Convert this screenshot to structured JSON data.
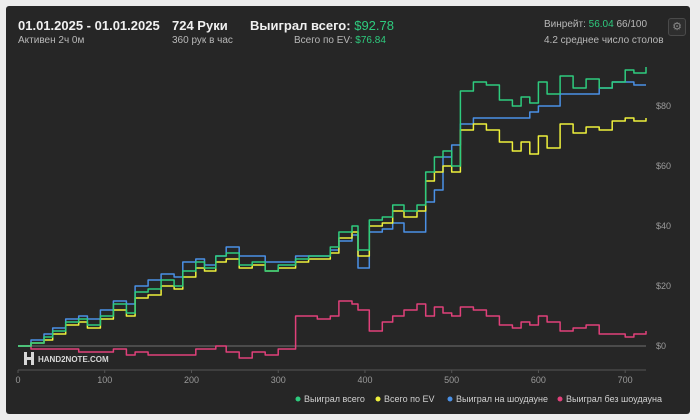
{
  "header": {
    "date_range": "01.01.2025 - 01.01.2025",
    "active_time": "Активен 2ч 0м",
    "hands": "724 Руки",
    "hands_per_hour": "360 рук в час",
    "won_total_label": "Выиграл всего:",
    "won_total_value": "$92.78",
    "ev_label": "Всего по EV:",
    "ev_value": "$76.84",
    "winrate_label": "Винрейт:",
    "winrate_value": "56.04",
    "winrate_suffix": "66/100",
    "avg_tables": "4.2 среднее число столов"
  },
  "settings_icon": "gear-icon",
  "logo": {
    "text": "HAND2NOTE.COM"
  },
  "colors": {
    "won_total": "#2ecb7e",
    "ev": "#eef03c",
    "showdown": "#4a90e6",
    "non_showdown": "#e0407a",
    "background": "#262626"
  },
  "chart_data": {
    "type": "line",
    "xlim": [
      0,
      724
    ],
    "ylim": [
      -8,
      96
    ],
    "x_ticks": [
      "0",
      "100",
      "200",
      "300",
      "400",
      "500",
      "600",
      "700"
    ],
    "y_ticks": [
      "$0",
      "$20",
      "$40",
      "$60",
      "$80"
    ],
    "x_tick_values": [
      0,
      100,
      200,
      300,
      400,
      500,
      600,
      700
    ],
    "y_tick_values": [
      0,
      20,
      40,
      60,
      80
    ],
    "grid": false,
    "legend_position": "bottom-right",
    "series": [
      {
        "name": "Выиграл всего",
        "color": "#2ecb7e",
        "x": [
          0,
          15,
          30,
          40,
          55,
          70,
          80,
          95,
          110,
          125,
          135,
          150,
          165,
          180,
          190,
          205,
          215,
          228,
          240,
          255,
          270,
          285,
          300,
          320,
          335,
          345,
          360,
          370,
          385,
          392,
          405,
          420,
          432,
          445,
          460,
          470,
          480,
          490,
          500,
          510,
          525,
          540,
          555,
          570,
          580,
          590,
          600,
          610,
          625,
          640,
          655,
          670,
          685,
          700,
          710,
          724
        ],
        "values": [
          0,
          1,
          3,
          5,
          8,
          9,
          7,
          10,
          14,
          11,
          18,
          19,
          22,
          20,
          25,
          28,
          26,
          30,
          31,
          27,
          28,
          25,
          27,
          29,
          30,
          30,
          33,
          38,
          40,
          32,
          42,
          43,
          47,
          45,
          47,
          58,
          63,
          65,
          60,
          85,
          88,
          87,
          82,
          80,
          83,
          81,
          88,
          84,
          90,
          86,
          89,
          86,
          88,
          92,
          91,
          93
        ]
      },
      {
        "name": "Всего по EV",
        "color": "#eef03c",
        "x": [
          0,
          15,
          30,
          40,
          55,
          70,
          80,
          95,
          110,
          125,
          135,
          150,
          165,
          180,
          190,
          205,
          215,
          228,
          240,
          255,
          270,
          285,
          300,
          320,
          335,
          345,
          360,
          370,
          385,
          392,
          405,
          420,
          432,
          445,
          460,
          470,
          480,
          490,
          500,
          510,
          525,
          540,
          555,
          570,
          580,
          590,
          600,
          610,
          625,
          640,
          655,
          670,
          685,
          700,
          710,
          724
        ],
        "values": [
          0,
          1,
          2,
          4,
          7,
          8,
          6,
          9,
          12,
          10,
          16,
          17,
          20,
          19,
          23,
          26,
          25,
          28,
          29,
          26,
          27,
          25,
          26,
          28,
          29,
          29,
          31,
          36,
          38,
          30,
          40,
          41,
          45,
          43,
          45,
          55,
          58,
          60,
          58,
          72,
          74,
          72,
          68,
          65,
          68,
          64,
          70,
          66,
          74,
          71,
          73,
          72,
          75,
          76,
          75,
          76
        ]
      },
      {
        "name": "Выиграл на шоудауне",
        "color": "#4a90e6",
        "x": [
          0,
          15,
          30,
          40,
          55,
          70,
          80,
          95,
          110,
          125,
          135,
          150,
          165,
          180,
          190,
          205,
          215,
          228,
          240,
          255,
          270,
          285,
          300,
          320,
          335,
          345,
          360,
          370,
          385,
          392,
          405,
          420,
          432,
          445,
          460,
          470,
          480,
          490,
          500,
          510,
          525,
          540,
          555,
          570,
          580,
          590,
          600,
          610,
          625,
          640,
          655,
          670,
          685,
          700,
          710,
          724
        ],
        "values": [
          0,
          2,
          4,
          6,
          9,
          10,
          9,
          12,
          15,
          14,
          20,
          22,
          24,
          23,
          28,
          29,
          27,
          30,
          33,
          30,
          30,
          28,
          28,
          30,
          30,
          30,
          32,
          35,
          37,
          26,
          38,
          39,
          41,
          38,
          38,
          48,
          52,
          63,
          67,
          74,
          76,
          76,
          76,
          76,
          76,
          78,
          80,
          80,
          84,
          84,
          84,
          86,
          88,
          88,
          87,
          87
        ]
      },
      {
        "name": "Выиграл без шоудауна",
        "color": "#e0407a",
        "x": [
          0,
          15,
          30,
          40,
          55,
          70,
          80,
          95,
          110,
          125,
          135,
          150,
          165,
          180,
          190,
          205,
          215,
          228,
          240,
          255,
          270,
          285,
          300,
          320,
          335,
          345,
          360,
          370,
          385,
          392,
          405,
          420,
          432,
          445,
          460,
          470,
          480,
          490,
          500,
          510,
          525,
          540,
          555,
          570,
          580,
          590,
          600,
          610,
          625,
          640,
          655,
          670,
          685,
          700,
          710,
          724
        ],
        "values": [
          0,
          -1,
          -1,
          -1,
          -1,
          -2,
          -2,
          -2,
          -1,
          -3,
          -2,
          -3,
          -3,
          -3,
          -3,
          -1,
          -1,
          0,
          -2,
          -4,
          -2,
          -3,
          -1,
          10,
          10,
          9,
          10,
          15,
          14,
          12,
          5,
          8,
          10,
          12,
          14,
          10,
          13,
          11,
          10,
          13,
          12,
          10,
          7,
          6,
          8,
          7,
          10,
          8,
          5,
          6,
          7,
          4,
          4,
          3,
          4,
          5
        ]
      }
    ]
  }
}
